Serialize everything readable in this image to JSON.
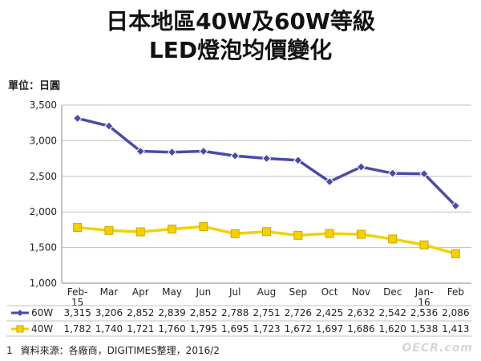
{
  "title_line1": "日本地區40W及60W等級",
  "title_line2": "LED燈泡均價變化",
  "unit_label": "單位：日圓",
  "footnote_number": "1",
  "source": "資料來源：各廠商，DIGITIMES整理，2016/2",
  "watermark": "OECR.com",
  "colors": {
    "60W": "#4a4aa8",
    "40W": "#f5d000"
  },
  "chart_data": {
    "type": "line",
    "title": "日本地區40W及60W等級 LED燈泡均價變化",
    "ylabel": "單位：日圓",
    "ylim": [
      1000,
      3500
    ],
    "yticks": [
      1000,
      1500,
      2000,
      2500,
      3000,
      3500
    ],
    "ytick_labels": [
      "1,000",
      "1,500",
      "2,000",
      "2,500",
      "3,000",
      "3,500"
    ],
    "grid": "horizontal",
    "legend": "data-table-bottom",
    "categories": [
      [
        "Feb-",
        "15"
      ],
      [
        "Mar"
      ],
      [
        "Apr"
      ],
      [
        "May"
      ],
      [
        "Jun"
      ],
      [
        "Jul"
      ],
      [
        "Aug"
      ],
      [
        "Sep"
      ],
      [
        "Oct"
      ],
      [
        "Nov"
      ],
      [
        "Dec"
      ],
      [
        "Jan-",
        "16"
      ],
      [
        "Feb"
      ]
    ],
    "series": [
      {
        "name": "60W",
        "color": "#4a4aa8",
        "marker": "diamond",
        "values": [
          3315,
          3206,
          2852,
          2839,
          2852,
          2788,
          2751,
          2726,
          2425,
          2632,
          2542,
          2536,
          2086
        ],
        "labels": [
          "3,315",
          "3,206",
          "2,852",
          "2,839",
          "2,852",
          "2,788",
          "2,751",
          "2,726",
          "2,425",
          "2,632",
          "2,542",
          "2,536",
          "2,086"
        ]
      },
      {
        "name": "40W",
        "color": "#f5d000",
        "marker": "square",
        "values": [
          1782,
          1740,
          1721,
          1760,
          1795,
          1695,
          1723,
          1672,
          1697,
          1686,
          1620,
          1538,
          1413
        ],
        "labels": [
          "1,782",
          "1,740",
          "1,721",
          "1,760",
          "1,795",
          "1,695",
          "1,723",
          "1,672",
          "1,697",
          "1,686",
          "1,620",
          "1,538",
          "1,413"
        ]
      }
    ]
  }
}
